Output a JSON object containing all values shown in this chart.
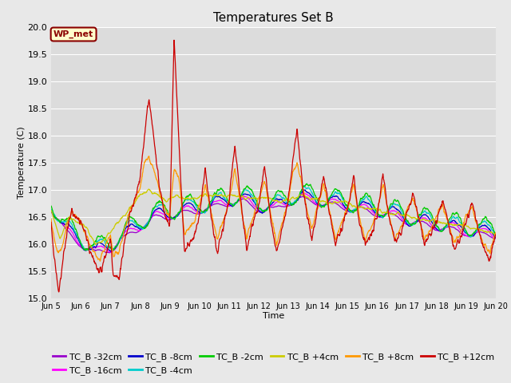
{
  "title": "Temperatures Set B",
  "xlabel": "Time",
  "ylabel": "Temperature (C)",
  "ylim": [
    15.0,
    20.0
  ],
  "yticks": [
    15.0,
    15.5,
    16.0,
    16.5,
    17.0,
    17.5,
    18.0,
    18.5,
    19.0,
    19.5,
    20.0
  ],
  "annotation_text": "WP_met",
  "annotation_bg": "#ffffcc",
  "annotation_border": "#8b0000",
  "series": [
    {
      "label": "TC_B -32cm",
      "color": "#9900cc"
    },
    {
      "label": "TC_B -16cm",
      "color": "#ff00ff"
    },
    {
      "label": "TC_B -8cm",
      "color": "#0000cc"
    },
    {
      "label": "TC_B -4cm",
      "color": "#00cccc"
    },
    {
      "label": "TC_B -2cm",
      "color": "#00cc00"
    },
    {
      "label": "TC_B +4cm",
      "color": "#cccc00"
    },
    {
      "label": "TC_B +8cm",
      "color": "#ff9900"
    },
    {
      "label": "TC_B +12cm",
      "color": "#cc0000"
    }
  ],
  "x_start": 5.0,
  "x_end": 20.0,
  "xtick_positions": [
    5,
    6,
    7,
    8,
    9,
    10,
    11,
    12,
    13,
    14,
    15,
    16,
    17,
    18,
    19,
    20
  ],
  "xtick_labels": [
    "Jun 5",
    "Jun 6",
    "Jun 7",
    "Jun 8",
    "Jun 9",
    "Jun 10",
    "Jun 11",
    "Jun 12",
    "Jun 13",
    "Jun 14",
    "Jun 15",
    "Jun 16",
    "Jun 17",
    "Jun 18",
    "Jun 19",
    "Jun 20"
  ],
  "legend_fontsize": 8,
  "title_fontsize": 11
}
